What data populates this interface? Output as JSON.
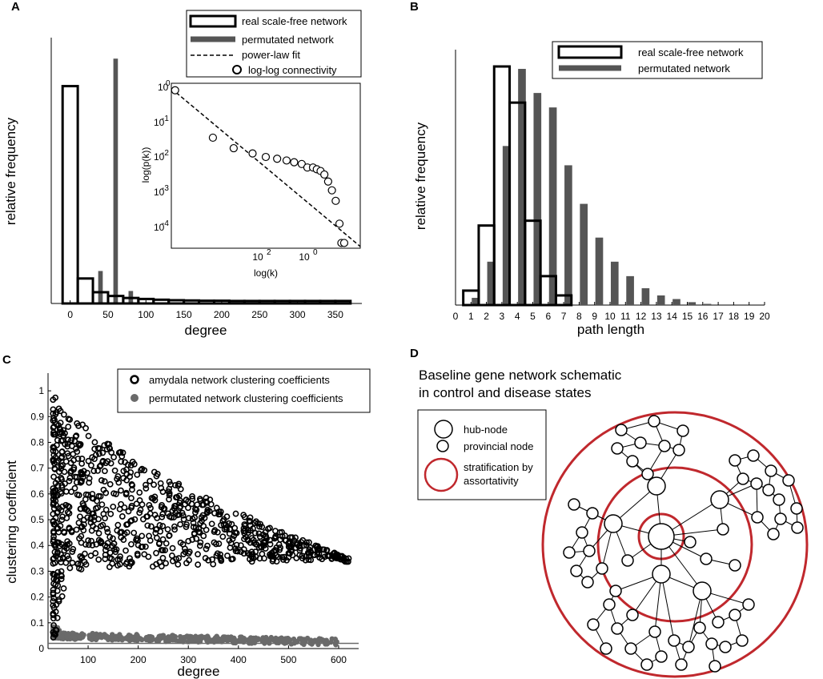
{
  "panels": {
    "a": "A",
    "b": "B",
    "c": "C",
    "d": "D"
  },
  "chart_data": [
    {
      "type": "bar",
      "panel": "A",
      "title": "",
      "xlabel": "degree",
      "ylabel": "relative frequency",
      "xlim": [
        -25,
        385
      ],
      "ylim": [
        0,
        1.0
      ],
      "xticks": [
        0,
        50,
        100,
        150,
        200,
        250,
        300,
        350
      ],
      "x_centers": [
        0,
        20,
        40,
        60,
        80,
        100,
        120,
        140,
        160,
        180,
        200,
        220,
        240,
        260,
        280,
        300,
        320,
        340,
        360,
        380
      ],
      "series": [
        {
          "name": "real scale-free network",
          "style": "outline",
          "values": [
            0.87,
            0.1,
            0.045,
            0.03,
            0.022,
            0.018,
            0.015,
            0.013,
            0.012,
            0.011,
            0.011,
            0.01,
            0.01,
            0.01,
            0.01,
            0.01,
            0.01,
            0.01,
            0.01,
            0.01
          ]
        },
        {
          "name": "permutated network",
          "style": "filled",
          "values": [
            0,
            0,
            0.13,
            0.98,
            0.05,
            0,
            0,
            0,
            0,
            0,
            0,
            0,
            0,
            0,
            0,
            0,
            0,
            0,
            0,
            0
          ]
        }
      ],
      "legend": [
        "real scale-free network",
        "permutated network",
        "power-law fit",
        "log-log connectivity"
      ],
      "inset": {
        "type": "scatter",
        "xlabel": "log(k)",
        "ylabel": "log(p(k))",
        "xtick_labels": [
          "10",
          "10"
        ],
        "xtick_exps": [
          "2",
          "0"
        ],
        "ytick_labels": [
          "10",
          "10",
          "10",
          "10",
          "10"
        ],
        "ytick_exps": [
          "0",
          "-1",
          "-2",
          "-3",
          "-4"
        ],
        "xlim": [
          0,
          1
        ],
        "ylim": [
          -4.6,
          0.1
        ],
        "points_x": [
          0.02,
          0.22,
          0.33,
          0.43,
          0.5,
          0.56,
          0.61,
          0.65,
          0.69,
          0.72,
          0.75,
          0.77,
          0.79,
          0.81,
          0.83,
          0.85,
          0.87,
          0.89,
          0.9
        ],
        "points_y": [
          -0.1,
          -1.45,
          -1.75,
          -1.9,
          -2.0,
          -2.05,
          -2.1,
          -2.15,
          -2.2,
          -2.3,
          -2.3,
          -2.35,
          -2.4,
          -2.5,
          -2.7,
          -2.95,
          -3.25,
          -3.9,
          -4.45
        ],
        "fit": [
          [
            0,
            -0.05
          ],
          [
            1,
            -4.55
          ]
        ]
      }
    },
    {
      "type": "bar",
      "panel": "B",
      "xlabel": "path length",
      "ylabel": "relative frequency",
      "xlim": [
        0,
        20
      ],
      "ylim": [
        0,
        1.0
      ],
      "xticks": [
        "0",
        "1",
        "2",
        "3",
        "4",
        "5",
        "6",
        "7",
        "8",
        "9",
        "10",
        "11",
        "12",
        "13",
        "14",
        "15",
        "16",
        "17",
        "18",
        "19",
        "20"
      ],
      "series": [
        {
          "name": "real scale-free network",
          "style": "outline",
          "centers": [
            1,
            2,
            3,
            4,
            5,
            6,
            7
          ],
          "values": [
            0.06,
            0.33,
            0.99,
            0.84,
            0.35,
            0.12,
            0.04
          ]
        },
        {
          "name": "permutated network",
          "style": "filled",
          "centers": [
            1.3,
            2.3,
            3.3,
            4.3,
            5.3,
            6.3,
            7.3,
            8.3,
            9.3,
            10.3,
            11.3,
            12.3,
            13.3,
            14.3,
            15.3,
            16.3
          ],
          "values": [
            0.03,
            0.18,
            0.66,
            0.98,
            0.88,
            0.82,
            0.58,
            0.42,
            0.28,
            0.18,
            0.12,
            0.07,
            0.04,
            0.025,
            0.012,
            0.005
          ]
        }
      ],
      "legend": [
        "real scale-free network",
        "permutated network"
      ]
    },
    {
      "type": "scatter",
      "panel": "C",
      "xlabel": "degree",
      "ylabel": "clustering coefficient",
      "xlim": [
        20,
        640
      ],
      "ylim": [
        0,
        1.05
      ],
      "xticks": [
        100,
        200,
        300,
        400,
        500,
        600
      ],
      "yticks": [
        "0",
        "0.1",
        "0.2",
        "0.3",
        "0.4",
        "0.5",
        "0.6",
        "0.7",
        "0.8",
        "0.9",
        "1"
      ],
      "series": [
        {
          "name": "amydala network clustering coefficients",
          "marker": "open-circle",
          "trend": {
            "deg_start": 30,
            "deg_end": 620,
            "upper_start": 1.0,
            "upper_end": 0.35,
            "lower_start": 0.0,
            "lower_end": 0.3
          }
        },
        {
          "name": "permutated network clustering coefficients",
          "marker": "filled-circle",
          "trend": {
            "deg_start": 30,
            "deg_end": 600,
            "value_start": 0.05,
            "value_end": 0.025
          }
        }
      ]
    }
  ],
  "schematic": {
    "title_line1": "Baseline gene network schematic",
    "title_line2": "in control and disease states",
    "legend": {
      "hub": "hub-node",
      "provincial": "provincial node",
      "strat_line1": "stratification by",
      "strat_line2": "assortativity"
    },
    "ring_color": "#c0282d"
  },
  "colors": {
    "gray_bar": "#555555",
    "gray_point": "#6a6a6a",
    "red": "#c0282d"
  }
}
